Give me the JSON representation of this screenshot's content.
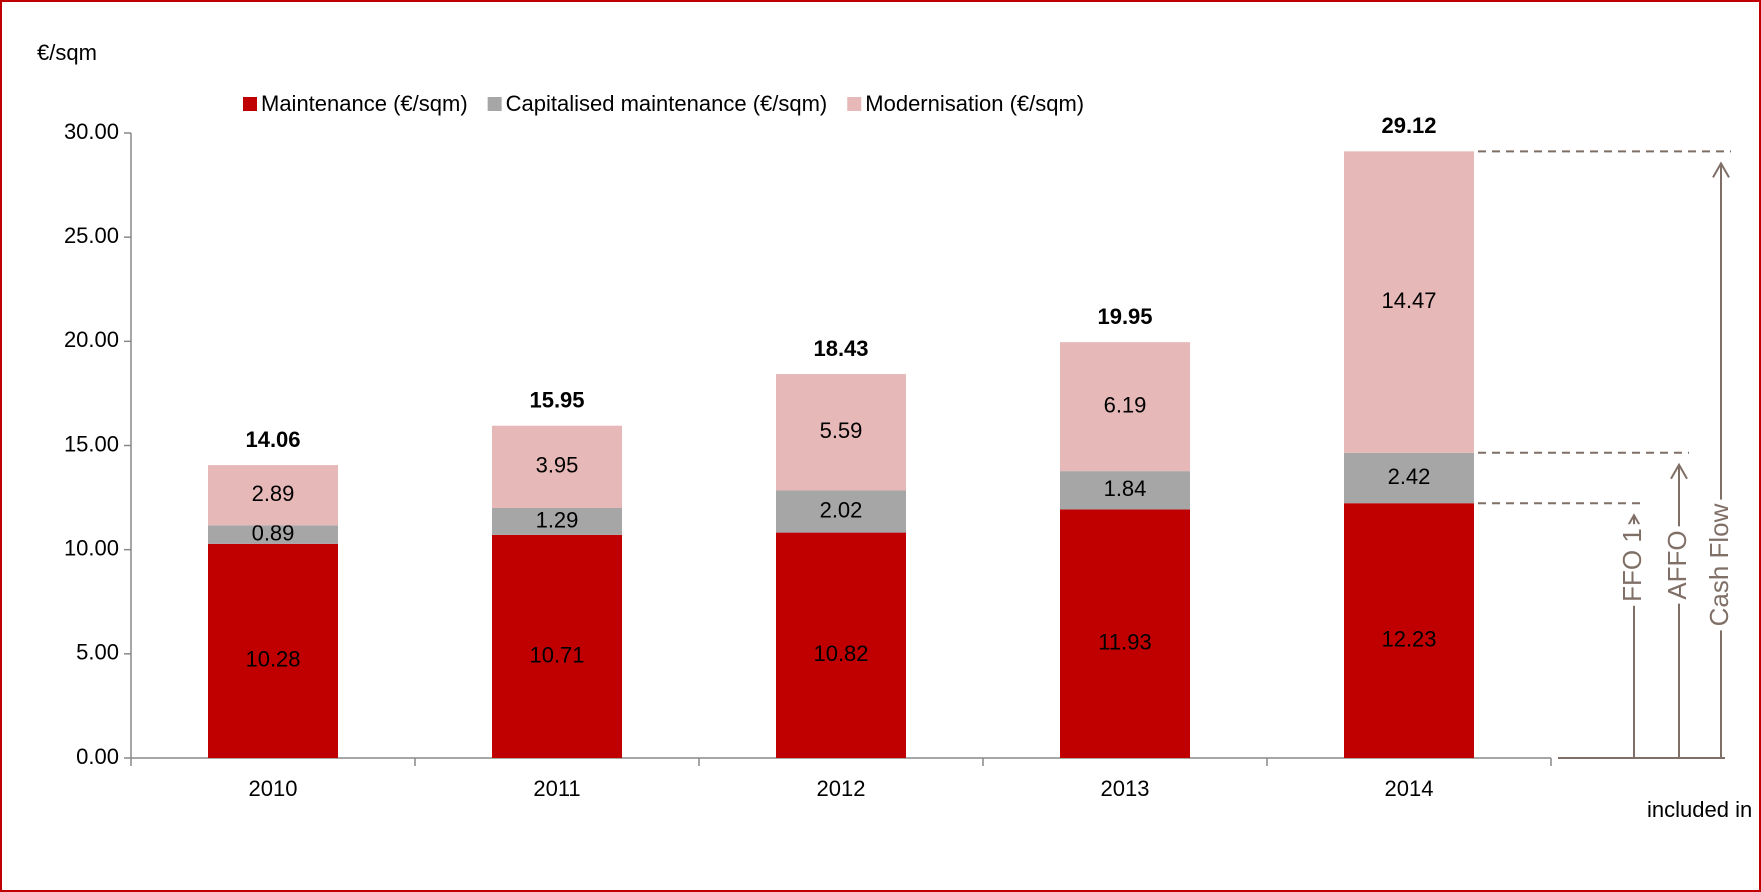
{
  "chart_data": {
    "type": "bar",
    "stacked": true,
    "y_label": "€/sqm",
    "categories": [
      "2010",
      "2011",
      "2012",
      "2013",
      "2014"
    ],
    "series": [
      {
        "name": "Maintenance (€/sqm)",
        "color": "#c00000",
        "values": [
          10.28,
          10.71,
          10.82,
          11.93,
          12.23
        ]
      },
      {
        "name": "Capitalised maintenance (€/sqm)",
        "color": "#a6a6a6",
        "values": [
          0.89,
          1.29,
          2.02,
          1.84,
          2.42
        ]
      },
      {
        "name": "Modernisation (€/sqm)",
        "color": "#e6b9b8",
        "values": [
          2.89,
          3.95,
          5.59,
          6.19,
          14.47
        ]
      }
    ],
    "totals": [
      14.06,
      15.95,
      18.43,
      19.95,
      29.12
    ],
    "ylim": [
      0,
      30
    ],
    "yticks": [
      {
        "value": 0,
        "label": "0.00"
      },
      {
        "value": 5,
        "label": "5.00"
      },
      {
        "value": 10,
        "label": "10.00"
      },
      {
        "value": 15,
        "label": "15.00"
      },
      {
        "value": 20,
        "label": "20.00"
      },
      {
        "value": 25,
        "label": "25.00"
      },
      {
        "value": 30,
        "label": "30.00"
      }
    ],
    "grid": false,
    "legend": "top",
    "annotations": {
      "note": "included in …",
      "levels": [
        "FFO 1",
        "AFFO",
        "Cash Flow"
      ]
    }
  }
}
